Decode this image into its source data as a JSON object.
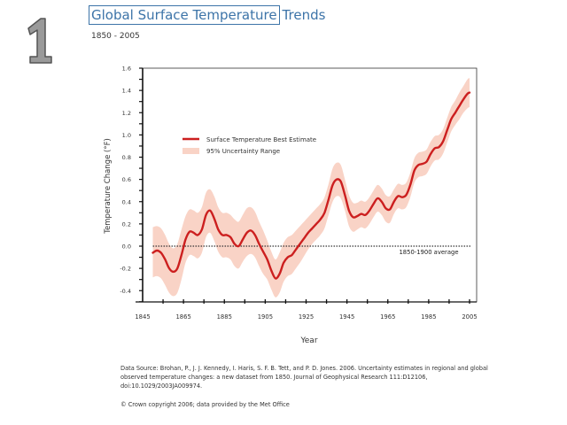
{
  "page": {
    "slide_number": "1",
    "title_boxed": "Global Surface Temperature",
    "title_rest": "Trends",
    "subtitle": "1850 - 2005",
    "source": "Data Source: Brohan, P., J. J. Kennedy, I. Haris, S. F. B. Tett, and P. D. Jones. 2006. Uncertainty estimates in regional and global observed temperature changes: a new dataset from 1850. Journal of Geophysical Research 111:D12106, doi:10.1029/2003JA009974.",
    "copyright": "© Crown copyright 2006;  data provided by the Met Office"
  },
  "colors": {
    "title": "#3d74a8",
    "line": "#cc1f1f",
    "band": "#f9d3c6",
    "axis": "#222222"
  },
  "chart_data": {
    "type": "line",
    "title": "Global Surface Temperature Trends",
    "subtitle": "1850 - 2005",
    "xlabel": "Year",
    "ylabel": "Temperature Change (°F)",
    "xlim": [
      1845,
      2007
    ],
    "ylim": [
      -0.5,
      1.6
    ],
    "x_ticks": [
      1845,
      1865,
      1885,
      1905,
      1925,
      1945,
      1965,
      1985,
      2005
    ],
    "y_ticks": [
      -0.4,
      -0.2,
      0.0,
      0.2,
      0.4,
      0.6,
      0.8,
      1.0,
      1.2,
      1.4,
      1.6
    ],
    "y_tick_labels": [
      "-0.4",
      "-0.2",
      "0.0",
      "0.2",
      "0.4",
      "0.6",
      "0.8",
      "1.0",
      "1.2",
      "1.4",
      "1.6"
    ],
    "legend": {
      "placement": "upper-left-inside",
      "entries": [
        "Surface Temperature Best Estimate",
        "95% Uncertainty Range"
      ]
    },
    "reference_line": {
      "y": 0.0,
      "label": "1850-1900 average",
      "style": "dotted"
    },
    "series": [
      {
        "name": "Surface Temperature Best Estimate",
        "x": [
          1850,
          1852,
          1854,
          1856,
          1858,
          1860,
          1862,
          1864,
          1866,
          1868,
          1870,
          1872,
          1874,
          1876,
          1878,
          1880,
          1882,
          1884,
          1886,
          1888,
          1890,
          1892,
          1894,
          1896,
          1898,
          1900,
          1902,
          1904,
          1906,
          1908,
          1910,
          1912,
          1914,
          1916,
          1918,
          1920,
          1922,
          1924,
          1926,
          1928,
          1930,
          1932,
          1934,
          1936,
          1938,
          1940,
          1942,
          1944,
          1946,
          1948,
          1950,
          1952,
          1954,
          1956,
          1958,
          1960,
          1962,
          1964,
          1966,
          1968,
          1970,
          1972,
          1974,
          1976,
          1978,
          1980,
          1982,
          1984,
          1986,
          1988,
          1990,
          1992,
          1994,
          1996,
          1998,
          2000,
          2002,
          2004,
          2005
        ],
        "values": [
          -0.06,
          -0.04,
          -0.06,
          -0.12,
          -0.2,
          -0.23,
          -0.2,
          -0.08,
          0.06,
          0.13,
          0.12,
          0.1,
          0.15,
          0.28,
          0.32,
          0.25,
          0.15,
          0.1,
          0.1,
          0.08,
          0.02,
          0.0,
          0.06,
          0.12,
          0.14,
          0.1,
          0.02,
          -0.05,
          -0.12,
          -0.22,
          -0.29,
          -0.25,
          -0.15,
          -0.1,
          -0.08,
          -0.03,
          0.02,
          0.07,
          0.12,
          0.16,
          0.2,
          0.24,
          0.3,
          0.42,
          0.55,
          0.6,
          0.58,
          0.46,
          0.32,
          0.26,
          0.27,
          0.29,
          0.28,
          0.32,
          0.38,
          0.43,
          0.4,
          0.34,
          0.33,
          0.4,
          0.45,
          0.44,
          0.46,
          0.55,
          0.68,
          0.73,
          0.74,
          0.76,
          0.83,
          0.88,
          0.89,
          0.94,
          1.04,
          1.14,
          1.2,
          1.26,
          1.32,
          1.37,
          1.38
        ]
      },
      {
        "name": "95% Uncertainty Range",
        "x": [
          1850,
          1852,
          1854,
          1856,
          1858,
          1860,
          1862,
          1864,
          1866,
          1868,
          1870,
          1872,
          1874,
          1876,
          1878,
          1880,
          1882,
          1884,
          1886,
          1888,
          1890,
          1892,
          1894,
          1896,
          1898,
          1900,
          1902,
          1904,
          1906,
          1908,
          1910,
          1912,
          1914,
          1916,
          1918,
          1920,
          1922,
          1924,
          1926,
          1928,
          1930,
          1932,
          1934,
          1936,
          1938,
          1940,
          1942,
          1944,
          1946,
          1948,
          1950,
          1952,
          1954,
          1956,
          1958,
          1960,
          1962,
          1964,
          1966,
          1968,
          1970,
          1972,
          1974,
          1976,
          1978,
          1980,
          1982,
          1984,
          1986,
          1988,
          1990,
          1992,
          1994,
          1996,
          1998,
          2000,
          2002,
          2004,
          2005
        ],
        "upper": [
          0.17,
          0.18,
          0.16,
          0.1,
          0.02,
          -0.02,
          0.02,
          0.15,
          0.27,
          0.33,
          0.32,
          0.3,
          0.35,
          0.48,
          0.51,
          0.45,
          0.35,
          0.3,
          0.3,
          0.28,
          0.24,
          0.22,
          0.28,
          0.34,
          0.35,
          0.31,
          0.22,
          0.14,
          0.05,
          -0.05,
          -0.12,
          -0.06,
          0.03,
          0.08,
          0.1,
          0.14,
          0.18,
          0.22,
          0.26,
          0.3,
          0.34,
          0.38,
          0.44,
          0.56,
          0.7,
          0.75,
          0.73,
          0.6,
          0.46,
          0.39,
          0.39,
          0.41,
          0.4,
          0.44,
          0.5,
          0.55,
          0.52,
          0.46,
          0.45,
          0.51,
          0.56,
          0.55,
          0.57,
          0.66,
          0.79,
          0.84,
          0.85,
          0.87,
          0.94,
          0.99,
          1.0,
          1.05,
          1.15,
          1.25,
          1.31,
          1.38,
          1.44,
          1.5,
          1.51
        ],
        "lower": [
          -0.28,
          -0.27,
          -0.29,
          -0.35,
          -0.42,
          -0.45,
          -0.42,
          -0.3,
          -0.15,
          -0.08,
          -0.09,
          -0.11,
          -0.06,
          0.08,
          0.12,
          0.05,
          -0.05,
          -0.1,
          -0.1,
          -0.12,
          -0.18,
          -0.2,
          -0.14,
          -0.09,
          -0.07,
          -0.1,
          -0.18,
          -0.25,
          -0.3,
          -0.39,
          -0.46,
          -0.42,
          -0.32,
          -0.27,
          -0.25,
          -0.2,
          -0.15,
          -0.09,
          -0.03,
          0.02,
          0.06,
          0.1,
          0.16,
          0.28,
          0.4,
          0.45,
          0.43,
          0.32,
          0.18,
          0.13,
          0.15,
          0.17,
          0.16,
          0.2,
          0.26,
          0.31,
          0.28,
          0.22,
          0.21,
          0.29,
          0.34,
          0.33,
          0.35,
          0.44,
          0.57,
          0.62,
          0.63,
          0.65,
          0.72,
          0.77,
          0.78,
          0.83,
          0.93,
          1.03,
          1.09,
          1.14,
          1.2,
          1.24,
          1.25
        ]
      }
    ]
  }
}
